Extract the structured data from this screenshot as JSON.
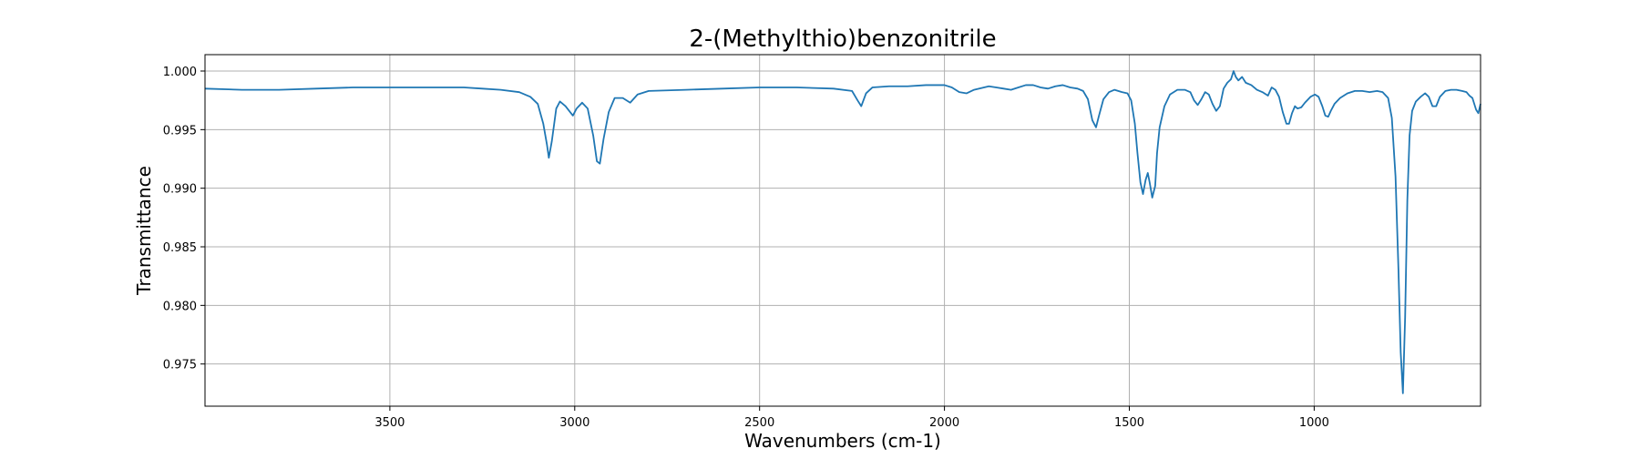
{
  "chart_data": {
    "type": "line",
    "title": "2-(Methylthio)benzonitrile",
    "xlabel": "Wavenumbers (cm-1)",
    "ylabel": "Transmittance",
    "xlim": [
      4000,
      550
    ],
    "ylim": [
      0.9714,
      1.0014
    ],
    "x_reversed": true,
    "grid": true,
    "xticks": [
      3500,
      3000,
      2500,
      2000,
      1500,
      1000
    ],
    "xtick_labels": [
      "3500",
      "3000",
      "2500",
      "2000",
      "1500",
      "1000"
    ],
    "yticks": [
      0.975,
      0.98,
      0.985,
      0.99,
      0.995,
      1.0
    ],
    "ytick_labels": [
      "0.975",
      "0.980",
      "0.985",
      "0.990",
      "0.995",
      "1.000"
    ],
    "series": [
      {
        "color": "#1f77b4",
        "points": [
          [
            4000,
            0.9985
          ],
          [
            3900,
            0.9984
          ],
          [
            3800,
            0.9984
          ],
          [
            3700,
            0.9985
          ],
          [
            3600,
            0.9986
          ],
          [
            3500,
            0.9986
          ],
          [
            3400,
            0.9986
          ],
          [
            3300,
            0.9986
          ],
          [
            3250,
            0.9985
          ],
          [
            3200,
            0.9984
          ],
          [
            3150,
            0.9982
          ],
          [
            3120,
            0.9978
          ],
          [
            3100,
            0.9972
          ],
          [
            3085,
            0.9955
          ],
          [
            3075,
            0.9937
          ],
          [
            3070,
            0.9926
          ],
          [
            3062,
            0.994
          ],
          [
            3050,
            0.9968
          ],
          [
            3040,
            0.9974
          ],
          [
            3025,
            0.997
          ],
          [
            3005,
            0.9962
          ],
          [
            2995,
            0.9968
          ],
          [
            2980,
            0.9973
          ],
          [
            2965,
            0.9968
          ],
          [
            2950,
            0.9945
          ],
          [
            2940,
            0.9923
          ],
          [
            2932,
            0.9921
          ],
          [
            2922,
            0.9942
          ],
          [
            2908,
            0.9965
          ],
          [
            2892,
            0.9977
          ],
          [
            2870,
            0.9977
          ],
          [
            2850,
            0.9973
          ],
          [
            2830,
            0.998
          ],
          [
            2800,
            0.9983
          ],
          [
            2700,
            0.9984
          ],
          [
            2600,
            0.9985
          ],
          [
            2500,
            0.9986
          ],
          [
            2400,
            0.9986
          ],
          [
            2300,
            0.9985
          ],
          [
            2250,
            0.9983
          ],
          [
            2235,
            0.9975
          ],
          [
            2225,
            0.997
          ],
          [
            2212,
            0.9981
          ],
          [
            2195,
            0.9986
          ],
          [
            2150,
            0.9987
          ],
          [
            2100,
            0.9987
          ],
          [
            2050,
            0.9988
          ],
          [
            2000,
            0.9988
          ],
          [
            1980,
            0.9986
          ],
          [
            1960,
            0.9982
          ],
          [
            1940,
            0.9981
          ],
          [
            1920,
            0.9984
          ],
          [
            1880,
            0.9987
          ],
          [
            1860,
            0.9986
          ],
          [
            1840,
            0.9985
          ],
          [
            1820,
            0.9984
          ],
          [
            1800,
            0.9986
          ],
          [
            1780,
            0.9988
          ],
          [
            1760,
            0.9988
          ],
          [
            1740,
            0.9986
          ],
          [
            1720,
            0.9985
          ],
          [
            1700,
            0.9987
          ],
          [
            1680,
            0.9988
          ],
          [
            1660,
            0.9986
          ],
          [
            1640,
            0.9985
          ],
          [
            1625,
            0.9983
          ],
          [
            1612,
            0.9976
          ],
          [
            1600,
            0.9958
          ],
          [
            1590,
            0.9952
          ],
          [
            1582,
            0.9962
          ],
          [
            1570,
            0.9976
          ],
          [
            1555,
            0.9982
          ],
          [
            1540,
            0.9984
          ],
          [
            1520,
            0.9982
          ],
          [
            1505,
            0.9981
          ],
          [
            1495,
            0.9975
          ],
          [
            1485,
            0.9955
          ],
          [
            1478,
            0.993
          ],
          [
            1470,
            0.9905
          ],
          [
            1463,
            0.9895
          ],
          [
            1456,
            0.9907
          ],
          [
            1450,
            0.9913
          ],
          [
            1445,
            0.9905
          ],
          [
            1438,
            0.9892
          ],
          [
            1430,
            0.9902
          ],
          [
            1425,
            0.993
          ],
          [
            1418,
            0.9952
          ],
          [
            1405,
            0.997
          ],
          [
            1390,
            0.998
          ],
          [
            1370,
            0.9984
          ],
          [
            1350,
            0.9984
          ],
          [
            1335,
            0.9982
          ],
          [
            1325,
            0.9975
          ],
          [
            1315,
            0.9971
          ],
          [
            1305,
            0.9976
          ],
          [
            1295,
            0.9982
          ],
          [
            1285,
            0.998
          ],
          [
            1275,
            0.9972
          ],
          [
            1265,
            0.9966
          ],
          [
            1255,
            0.997
          ],
          [
            1245,
            0.9985
          ],
          [
            1235,
            0.999
          ],
          [
            1225,
            0.9993
          ],
          [
            1218,
            1.0
          ],
          [
            1212,
            0.9995
          ],
          [
            1205,
            0.9992
          ],
          [
            1195,
            0.9995
          ],
          [
            1185,
            0.999
          ],
          [
            1170,
            0.9988
          ],
          [
            1155,
            0.9984
          ],
          [
            1140,
            0.9982
          ],
          [
            1125,
            0.9979
          ],
          [
            1115,
            0.9986
          ],
          [
            1105,
            0.9984
          ],
          [
            1095,
            0.9978
          ],
          [
            1085,
            0.9965
          ],
          [
            1075,
            0.9955
          ],
          [
            1068,
            0.9955
          ],
          [
            1060,
            0.9964
          ],
          [
            1052,
            0.997
          ],
          [
            1045,
            0.9968
          ],
          [
            1035,
            0.9969
          ],
          [
            1025,
            0.9973
          ],
          [
            1010,
            0.9978
          ],
          [
            998,
            0.998
          ],
          [
            988,
            0.9978
          ],
          [
            978,
            0.997
          ],
          [
            970,
            0.9962
          ],
          [
            962,
            0.9961
          ],
          [
            955,
            0.9966
          ],
          [
            945,
            0.9972
          ],
          [
            930,
            0.9977
          ],
          [
            910,
            0.9981
          ],
          [
            890,
            0.9983
          ],
          [
            870,
            0.9983
          ],
          [
            850,
            0.9982
          ],
          [
            830,
            0.9983
          ],
          [
            815,
            0.9982
          ],
          [
            800,
            0.9977
          ],
          [
            790,
            0.996
          ],
          [
            780,
            0.991
          ],
          [
            772,
            0.983
          ],
          [
            766,
            0.976
          ],
          [
            760,
            0.9725
          ],
          [
            754,
            0.979
          ],
          [
            748,
            0.989
          ],
          [
            742,
            0.9945
          ],
          [
            735,
            0.9966
          ],
          [
            725,
            0.9974
          ],
          [
            712,
            0.9978
          ],
          [
            700,
            0.9981
          ],
          [
            690,
            0.9978
          ],
          [
            680,
            0.997
          ],
          [
            670,
            0.997
          ],
          [
            660,
            0.9978
          ],
          [
            645,
            0.9983
          ],
          [
            630,
            0.9984
          ],
          [
            615,
            0.9984
          ],
          [
            600,
            0.9983
          ],
          [
            588,
            0.9982
          ],
          [
            580,
            0.9979
          ],
          [
            572,
            0.9977
          ],
          [
            562,
            0.9967
          ],
          [
            556,
            0.9964
          ],
          [
            550,
            0.9972
          ]
        ]
      }
    ]
  }
}
